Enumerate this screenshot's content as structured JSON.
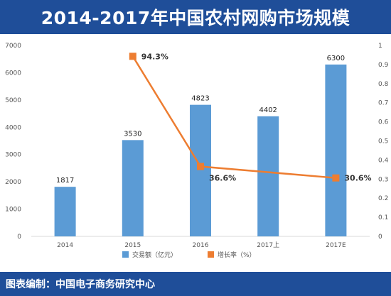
{
  "header": {
    "title": "2014-2017年中国农村网购市场规模"
  },
  "footer": {
    "source": "图表编制：中国电子商务研究中心"
  },
  "chart_data": {
    "type": "bar",
    "categories": [
      "2014",
      "2015",
      "2016",
      "2017上",
      "2017E"
    ],
    "series": [
      {
        "name": "交易额（亿元）",
        "type": "bar",
        "axis": "left",
        "color": "#5b9bd5",
        "values": [
          1817,
          3530,
          4823,
          4402,
          6300
        ],
        "labels": [
          "1817",
          "3530",
          "4823",
          "4402",
          "6300"
        ]
      },
      {
        "name": "增长率（%）",
        "type": "line",
        "axis": "right",
        "color": "#ed7d31",
        "values": [
          null,
          0.943,
          0.366,
          null,
          0.306
        ],
        "labels": [
          null,
          "94.3%",
          "36.6%",
          null,
          "30.6%"
        ]
      }
    ],
    "y_left": {
      "ylim": [
        0,
        7000
      ],
      "ticks": [
        "0",
        "1000",
        "2000",
        "3000",
        "4000",
        "5000",
        "6000",
        "7000"
      ]
    },
    "y_right": {
      "ylim": [
        0,
        1
      ],
      "ticks": [
        "0",
        "0.1",
        "0.2",
        "0.3",
        "0.4",
        "0.5",
        "0.6",
        "0.7",
        "0.8",
        "0.9",
        "1"
      ]
    },
    "grid": false,
    "legend_position": "bottom"
  }
}
